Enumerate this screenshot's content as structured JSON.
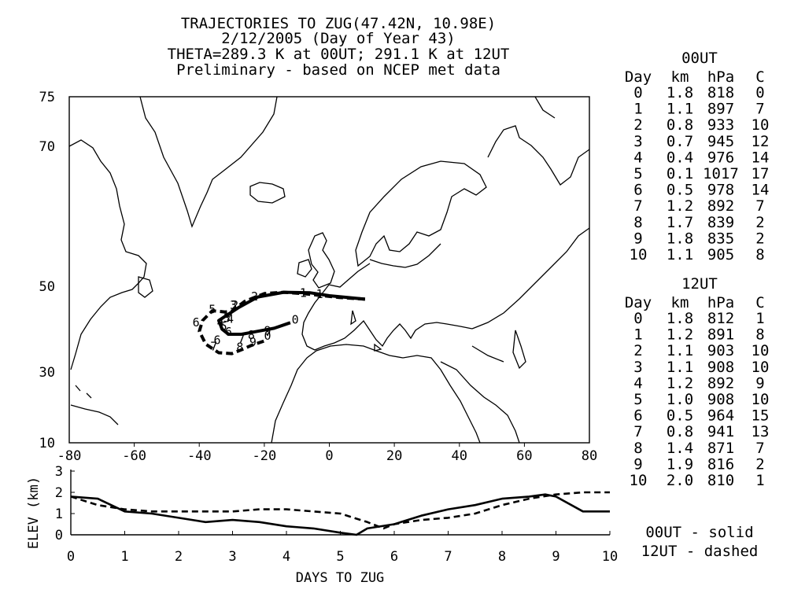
{
  "title": {
    "line1": "TRAJECTORIES TO ZUG(47.42N, 10.98E)",
    "line2": "2/12/2005 (Day of Year 43)",
    "line3": "THETA=289.3 K at 00UT; 291.1 K at 12UT",
    "line4": "Preliminary - based on NCEP met data"
  },
  "tables": [
    {
      "title": "00UT",
      "headers": [
        "Day",
        "km",
        "hPa",
        "C"
      ],
      "rows": [
        [
          "0",
          "1.8",
          "818",
          "0"
        ],
        [
          "1",
          "1.1",
          "897",
          "7"
        ],
        [
          "2",
          "0.8",
          "933",
          "10"
        ],
        [
          "3",
          "0.7",
          "945",
          "12"
        ],
        [
          "4",
          "0.4",
          "976",
          "14"
        ],
        [
          "5",
          "0.1",
          "1017",
          "17"
        ],
        [
          "6",
          "0.5",
          "978",
          "14"
        ],
        [
          "7",
          "1.2",
          "892",
          "7"
        ],
        [
          "8",
          "1.7",
          "839",
          "2"
        ],
        [
          "9",
          "1.8",
          "835",
          "2"
        ],
        [
          "10",
          "1.1",
          "905",
          "8"
        ]
      ]
    },
    {
      "title": "12UT",
      "headers": [
        "Day",
        "km",
        "hPa",
        "C"
      ],
      "rows": [
        [
          "0",
          "1.8",
          "812",
          "1"
        ],
        [
          "1",
          "1.2",
          "891",
          "8"
        ],
        [
          "2",
          "1.1",
          "903",
          "10"
        ],
        [
          "3",
          "1.1",
          "908",
          "10"
        ],
        [
          "4",
          "1.2",
          "892",
          "9"
        ],
        [
          "5",
          "1.0",
          "908",
          "10"
        ],
        [
          "6",
          "0.5",
          "964",
          "15"
        ],
        [
          "7",
          "0.8",
          "941",
          "13"
        ],
        [
          "8",
          "1.4",
          "871",
          "7"
        ],
        [
          "9",
          "1.9",
          "816",
          "2"
        ],
        [
          "10",
          "2.0",
          "810",
          "1"
        ]
      ]
    }
  ],
  "legend": {
    "solid": "00UT - solid",
    "dashed": "12UT - dashed"
  },
  "chart_data": [
    {
      "type": "line",
      "name": "trajectory-map",
      "xlim": [
        -80,
        80
      ],
      "ylim": [
        10,
        75
      ],
      "xticks": [
        "-80",
        "-60",
        "-40",
        "-20",
        "0",
        "20",
        "40",
        "60",
        "80"
      ],
      "yticks": [
        "75",
        "70",
        "50",
        "30",
        "10"
      ],
      "series": [
        {
          "name": "00UT",
          "style": "solid",
          "points": [
            [
              11,
              47
            ],
            [
              0,
              47.8
            ],
            [
              -6,
              48.5
            ],
            [
              -14,
              48.6
            ],
            [
              -22,
              47.5
            ],
            [
              -28,
              45
            ],
            [
              -32,
              43
            ],
            [
              -34,
              42
            ],
            [
              -33,
              40
            ],
            [
              -31,
              38.8
            ],
            [
              -27,
              38.8
            ],
            [
              -22,
              39.5
            ],
            [
              -17,
              40.2
            ],
            [
              -12,
              41.5
            ]
          ],
          "day_labels": [
            {
              "text": "1",
              "lon": -8,
              "lat": 48.4
            },
            {
              "text": "2",
              "lon": -23,
              "lat": 47.6
            },
            {
              "text": "3",
              "lon": -29.5,
              "lat": 45.6
            },
            {
              "text": "4",
              "lon": -33.5,
              "lat": 41.6
            },
            {
              "text": "5",
              "lon": -32.5,
              "lat": 40.6
            },
            {
              "text": "6",
              "lon": -31,
              "lat": 39.4
            },
            {
              "text": "7",
              "lon": -27,
              "lat": 37.8
            },
            {
              "text": "8",
              "lon": -24,
              "lat": 38.6
            },
            {
              "text": "9",
              "lon": -19,
              "lat": 39.6
            },
            {
              "text": "0",
              "lon": -10.5,
              "lat": 42.2
            }
          ]
        },
        {
          "name": "12UT",
          "style": "dashed",
          "points": [
            [
              11,
              47
            ],
            [
              3,
              47.4
            ],
            [
              -2,
              47.8
            ],
            [
              -8,
              48.3
            ],
            [
              -14,
              48.6
            ],
            [
              -20,
              48.3
            ],
            [
              -26,
              46.5
            ],
            [
              -30,
              44.2
            ],
            [
              -32,
              44
            ],
            [
              -36,
              44.3
            ],
            [
              -39,
              42
            ],
            [
              -40,
              39.5
            ],
            [
              -38,
              36.5
            ],
            [
              -34,
              34.5
            ],
            [
              -30,
              34.3
            ],
            [
              -27,
              35.2
            ],
            [
              -24,
              36.2
            ],
            [
              -19,
              37.5
            ]
          ],
          "day_labels": [
            {
              "text": "1",
              "lon": -3,
              "lat": 48.2
            },
            {
              "text": "2",
              "lon": -29,
              "lat": 45.6
            },
            {
              "text": "3",
              "lon": -31.5,
              "lat": 42.6
            },
            {
              "text": "4",
              "lon": -30.5,
              "lat": 42.4
            },
            {
              "text": "5",
              "lon": -36,
              "lat": 44.6
            },
            {
              "text": "6",
              "lon": -41,
              "lat": 41.6
            },
            {
              "text": "6",
              "lon": -34.5,
              "lat": 37.4
            },
            {
              "text": "7",
              "lon": -35.5,
              "lat": 36
            },
            {
              "text": "8",
              "lon": -27.5,
              "lat": 35.8
            },
            {
              "text": "9",
              "lon": -23.5,
              "lat": 37
            },
            {
              "text": "0",
              "lon": -19,
              "lat": 38.4
            }
          ]
        }
      ]
    },
    {
      "type": "line",
      "name": "elevation",
      "xlabel": "DAYS TO ZUG",
      "ylabel": "ELEV (km)",
      "xlim": [
        0,
        10
      ],
      "ylim": [
        0,
        3
      ],
      "xticks": [
        "0",
        "1",
        "2",
        "3",
        "4",
        "5",
        "6",
        "7",
        "8",
        "9",
        "10"
      ],
      "yticks": [
        "0",
        "1",
        "2",
        "3"
      ],
      "series": [
        {
          "name": "00UT",
          "style": "solid",
          "x": [
            0,
            0.5,
            1,
            1.5,
            2,
            2.5,
            3,
            3.5,
            4,
            4.5,
            5,
            5.3,
            5.5,
            6,
            6.5,
            7,
            7.5,
            8,
            8.5,
            8.8,
            9,
            9.5,
            10
          ],
          "y": [
            1.8,
            1.7,
            1.1,
            1.0,
            0.8,
            0.6,
            0.7,
            0.6,
            0.4,
            0.3,
            0.1,
            0.0,
            0.3,
            0.5,
            0.9,
            1.2,
            1.4,
            1.7,
            1.8,
            1.9,
            1.8,
            1.1,
            1.1
          ]
        },
        {
          "name": "12UT",
          "style": "dashed",
          "x": [
            0,
            0.5,
            1,
            1.5,
            2,
            2.5,
            3,
            3.5,
            4,
            4.5,
            5,
            5.5,
            5.8,
            6,
            6.5,
            7,
            7.5,
            8,
            8.5,
            9,
            9.5,
            10
          ],
          "y": [
            1.8,
            1.4,
            1.2,
            1.1,
            1.1,
            1.1,
            1.1,
            1.2,
            1.2,
            1.1,
            1.0,
            0.6,
            0.3,
            0.5,
            0.7,
            0.8,
            1.0,
            1.4,
            1.7,
            1.9,
            2.0,
            2.0
          ]
        }
      ]
    }
  ]
}
